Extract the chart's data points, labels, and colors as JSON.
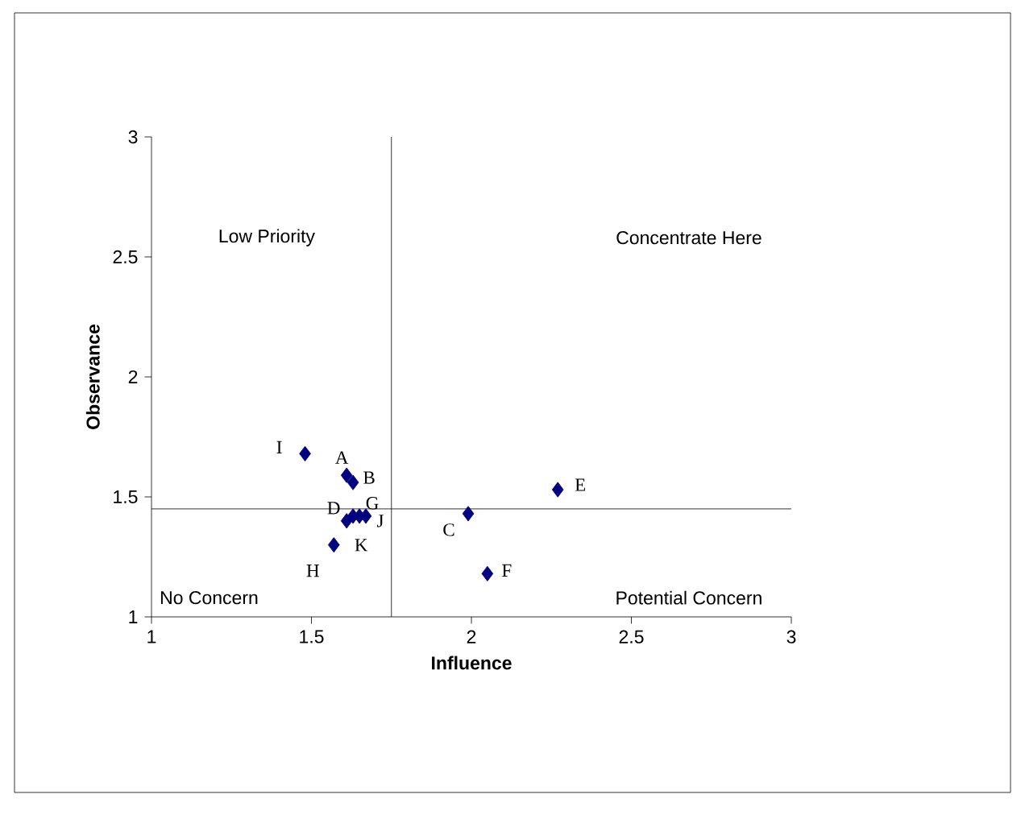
{
  "chart_data": {
    "type": "scatter",
    "xlabel": "Influence",
    "ylabel": "Observance",
    "x": [
      1.61,
      1.63,
      1.99,
      1.63,
      2.27,
      2.05,
      1.65,
      1.57,
      1.48,
      1.67,
      1.61
    ],
    "values": [
      1.59,
      1.56,
      1.43,
      1.42,
      1.53,
      1.18,
      1.42,
      1.3,
      1.68,
      1.42,
      1.4
    ],
    "color": "#000080",
    "marker": "diamond",
    "grid": false,
    "xlim": [
      1,
      3
    ],
    "ylim": [
      1,
      3
    ],
    "xticks": [
      1,
      1.5,
      2,
      2.5,
      3
    ],
    "yticks": [
      1,
      1.5,
      2,
      2.5,
      3
    ],
    "ref_lines": [
      {
        "axis": "x",
        "value": 1.75,
        "color": "#000000"
      },
      {
        "axis": "y",
        "value": 1.45,
        "color": "#000000"
      }
    ],
    "annotations": [
      "Low Priority",
      "Concentrate Here",
      "No Concern",
      "Potential Concern",
      {
        "text": "A",
        "x": 1.61,
        "y": 1.59
      },
      {
        "text": "B",
        "x": 1.63,
        "y": 1.56
      },
      {
        "text": "C",
        "x": 1.99,
        "y": 1.43
      },
      {
        "text": "D",
        "x": 1.63,
        "y": 1.42
      },
      {
        "text": "E",
        "x": 2.27,
        "y": 1.53
      },
      {
        "text": "F",
        "x": 2.05,
        "y": 1.18
      },
      {
        "text": "G",
        "x": 1.65,
        "y": 1.42
      },
      {
        "text": "H",
        "x": 1.57,
        "y": 1.3
      },
      {
        "text": "I",
        "x": 1.48,
        "y": 1.68
      },
      {
        "text": "J",
        "x": 1.67,
        "y": 1.42
      },
      {
        "text": "K",
        "x": 1.61,
        "y": 1.4
      }
    ]
  }
}
